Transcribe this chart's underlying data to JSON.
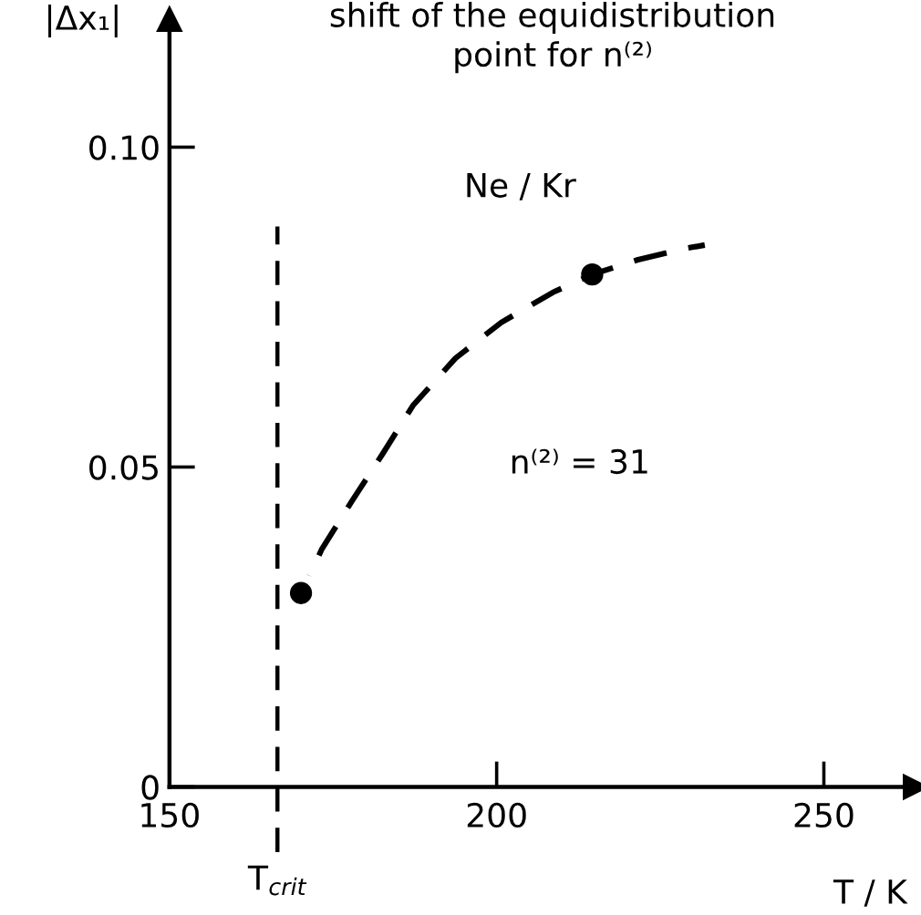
{
  "chart_data": {
    "type": "line",
    "title": "shift of the equidistribution\npoint for n⁽²⁾",
    "xlabel": "T / K",
    "ylabel": "|Δx₁|",
    "xlim": [
      150,
      264
    ],
    "ylim": [
      0,
      0.12
    ],
    "xticks": [
      150,
      200,
      250
    ],
    "yticks": [
      0,
      0.05,
      {
        "value": 0.1,
        "label": "0.10"
      }
    ],
    "series": [
      {
        "color": "#000000",
        "line_style": "dashed",
        "x": [
          171.4,
          173.3,
          177.9,
          182.6,
          187.2,
          193.7,
          200.7,
          208.6,
          214.6,
          221.6,
          229.0,
          231.8
        ],
        "values": [
          0.033,
          0.0372,
          0.0447,
          0.0521,
          0.0596,
          0.067,
          0.0726,
          0.0773,
          0.0801,
          0.0824,
          0.0842,
          0.0847
        ]
      },
      {
        "type": "scatter",
        "color": "#000000",
        "marker": "circle",
        "x": [
          170.1,
          214.6
        ],
        "values": [
          0.0303,
          0.0801
        ]
      }
    ],
    "ref_lines": [
      {
        "axis": "x",
        "value": 166.5,
        "label": "T$_{crit}$",
        "color": "#000000",
        "line_style": "dashed"
      }
    ],
    "annotations": [
      "Ne / Kr",
      "n⁽²⁾ = 31"
    ]
  }
}
